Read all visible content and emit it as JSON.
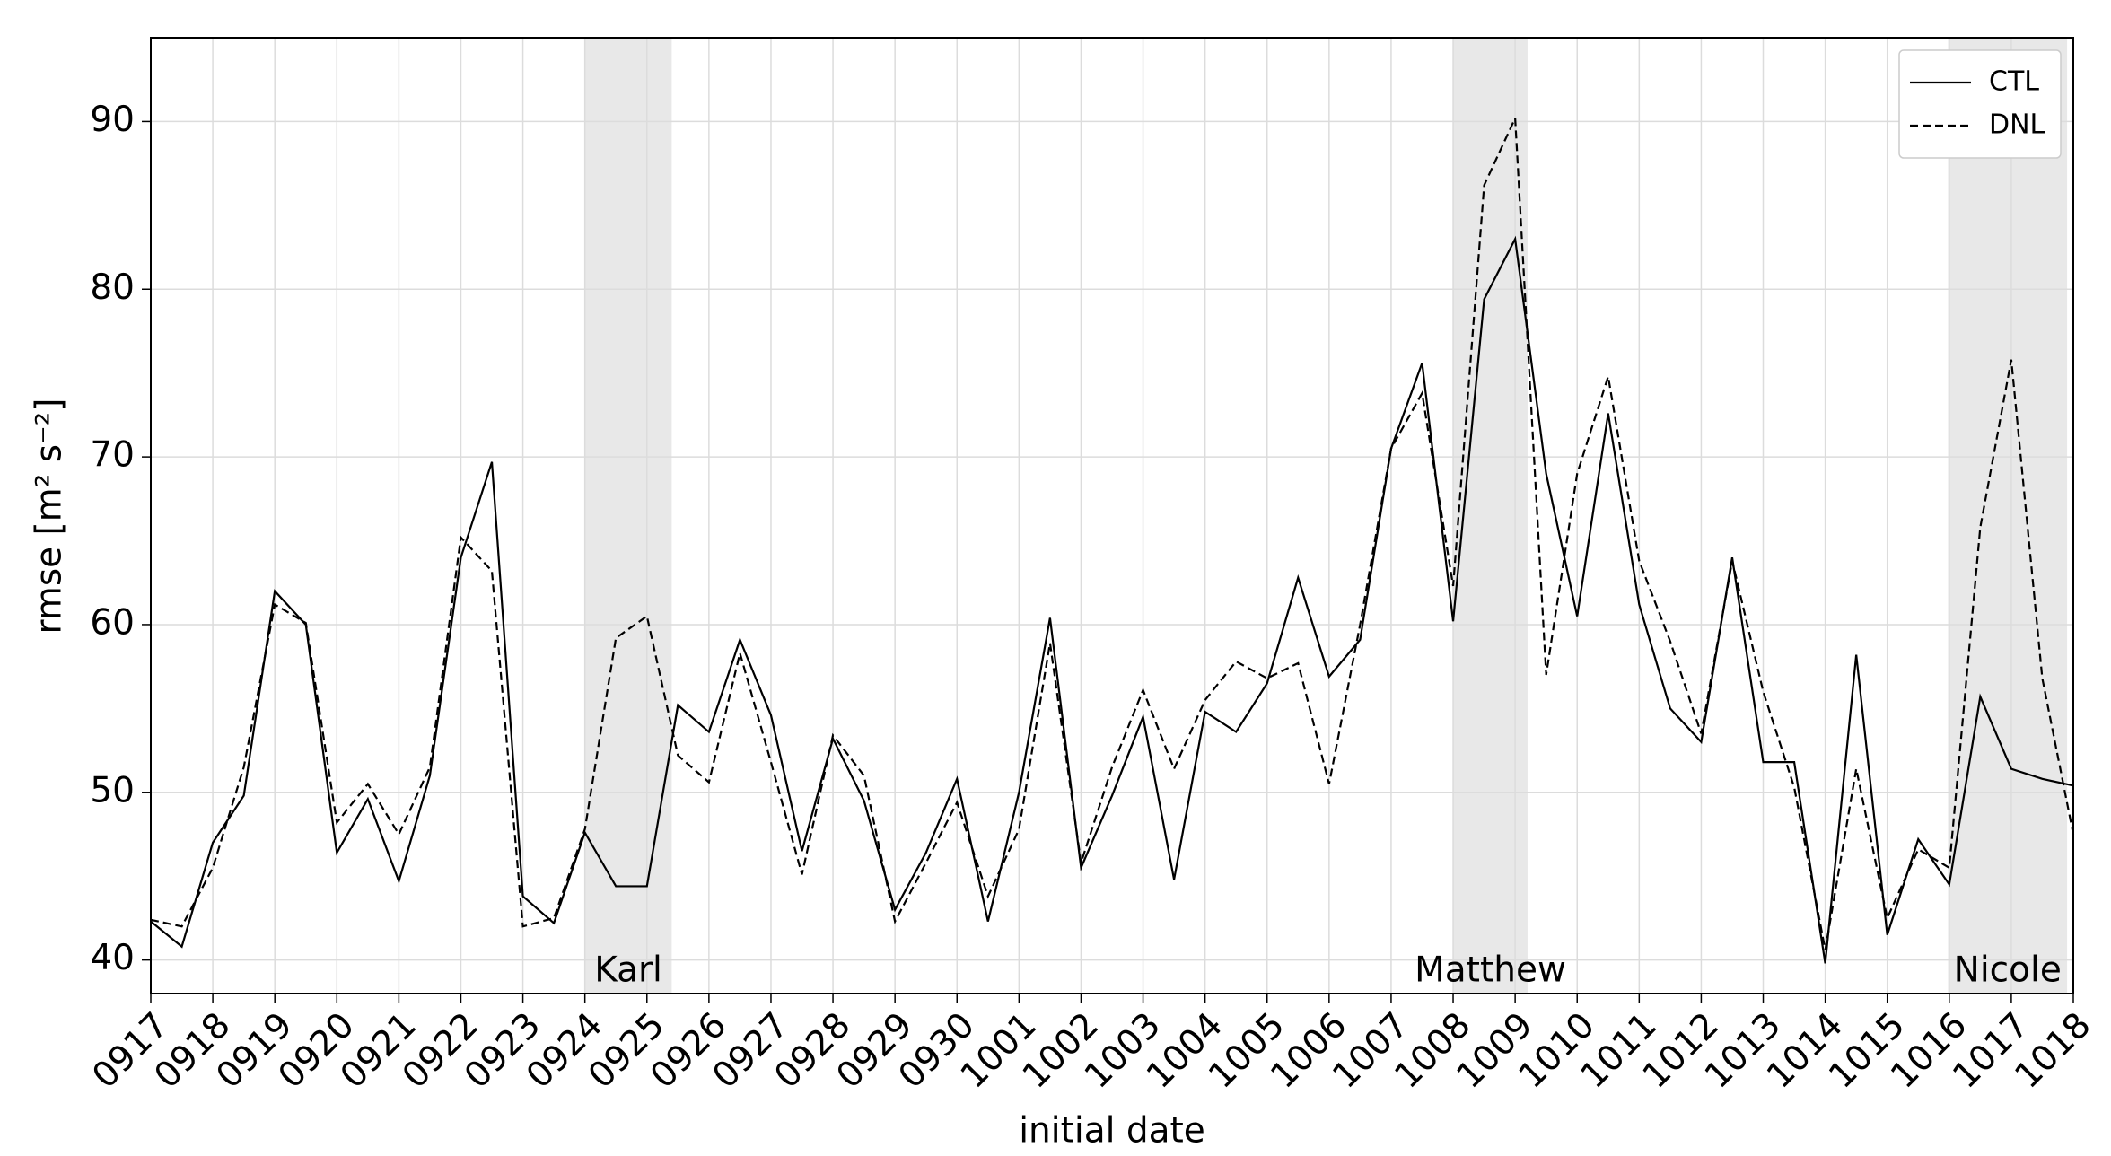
{
  "chart_data": {
    "type": "line",
    "xlabel": "initial date",
    "ylabel": "rmse [m² s⁻²]",
    "x": [
      0,
      0.5,
      1,
      1.5,
      2,
      2.5,
      3,
      3.5,
      4,
      4.5,
      5,
      5.5,
      6,
      6.5,
      7,
      7.5,
      8,
      8.5,
      9,
      9.5,
      10,
      10.5,
      11,
      11.5,
      12,
      12.5,
      13,
      13.5,
      14,
      14.5,
      15,
      15.5,
      16,
      16.5,
      17,
      17.5,
      18,
      18.5,
      19,
      19.5,
      20,
      20.5,
      21,
      21.5,
      22,
      22.5,
      23,
      23.5,
      24,
      24.5,
      25,
      25.5,
      26,
      26.5,
      27,
      27.5,
      28,
      28.5,
      29,
      29.5,
      30,
      30.5,
      31
    ],
    "series": [
      {
        "name": "CTL",
        "color": "#000000",
        "linestyle": "solid",
        "values": [
          42.3,
          40.8,
          47,
          49.8,
          62,
          60,
          46.4,
          49.6,
          44.7,
          51,
          64,
          69.7,
          43.8,
          42.2,
          47.6,
          44.4,
          44.4,
          55.2,
          53.6,
          59.1,
          54.6,
          46.5,
          53.2,
          49.5,
          43,
          46.4,
          50.8,
          42.3,
          50,
          60.4,
          45.5,
          49.8,
          54.5,
          44.8,
          54.8,
          53.6,
          56.5,
          62.8,
          56.9,
          59.1,
          70.5,
          75.6,
          60.2,
          79.4,
          83,
          69,
          60.5,
          72.6,
          61.2,
          55,
          53,
          64,
          51.8,
          51.8,
          39.8,
          58.2,
          41.5,
          47.2,
          44.5,
          55.7,
          51.4,
          50.8,
          50.4
        ]
      },
      {
        "name": "DNL",
        "color": "#000000",
        "linestyle": "dashed",
        "values": [
          42.4,
          42,
          45.5,
          51.5,
          61.2,
          60.1,
          48.2,
          50.5,
          47.5,
          51.5,
          65.2,
          63.2,
          42,
          42.5,
          47.8,
          59.2,
          60.5,
          52.2,
          50.6,
          58.3,
          51.8,
          45.1,
          53.4,
          51,
          42.3,
          45.8,
          49.4,
          43.8,
          47.8,
          58.9,
          45.8,
          51.5,
          56.1,
          51.4,
          55.5,
          57.8,
          56.8,
          57.7,
          50.5,
          60,
          70.5,
          73.8,
          62.3,
          86.2,
          90.2,
          57,
          69,
          74.8,
          63.8,
          59,
          53.5,
          63.8,
          56,
          50.3,
          40.6,
          51.4,
          42.5,
          46.6,
          45.5,
          65.8,
          75.8,
          56.8,
          47.5
        ]
      }
    ],
    "spans": [
      {
        "label": "Karl",
        "x": [
          7,
          8.4
        ],
        "color": "#e8e8e8"
      },
      {
        "label": "Matthew",
        "x": [
          21,
          22.2
        ],
        "color": "#e8e8e8"
      },
      {
        "label": "Nicole",
        "x": [
          28.98,
          30.9
        ],
        "color": "#e8e8e8"
      }
    ],
    "xlim": [
      0,
      31
    ],
    "xticks": [
      {
        "value": 0,
        "label": "0917"
      },
      {
        "value": 1,
        "label": "0918"
      },
      {
        "value": 2,
        "label": "0919"
      },
      {
        "value": 3,
        "label": "0920"
      },
      {
        "value": 4,
        "label": "0921"
      },
      {
        "value": 5,
        "label": "0922"
      },
      {
        "value": 6,
        "label": "0923"
      },
      {
        "value": 7,
        "label": "0924"
      },
      {
        "value": 8,
        "label": "0925"
      },
      {
        "value": 9,
        "label": "0926"
      },
      {
        "value": 10,
        "label": "0927"
      },
      {
        "value": 11,
        "label": "0928"
      },
      {
        "value": 12,
        "label": "0929"
      },
      {
        "value": 13,
        "label": "0930"
      },
      {
        "value": 14,
        "label": "1001"
      },
      {
        "value": 15,
        "label": "1002"
      },
      {
        "value": 16,
        "label": "1003"
      },
      {
        "value": 17,
        "label": "1004"
      },
      {
        "value": 18,
        "label": "1005"
      },
      {
        "value": 19,
        "label": "1006"
      },
      {
        "value": 20,
        "label": "1007"
      },
      {
        "value": 21,
        "label": "1008"
      },
      {
        "value": 22,
        "label": "1009"
      },
      {
        "value": 23,
        "label": "1010"
      },
      {
        "value": 24,
        "label": "1011"
      },
      {
        "value": 25,
        "label": "1012"
      },
      {
        "value": 26,
        "label": "1013"
      },
      {
        "value": 27,
        "label": "1014"
      },
      {
        "value": 28,
        "label": "1015"
      },
      {
        "value": 29,
        "label": "1016"
      },
      {
        "value": 30,
        "label": "1017"
      },
      {
        "value": 31,
        "label": "1018"
      }
    ],
    "ylim": [
      38,
      95
    ],
    "yticks": [
      40,
      50,
      60,
      70,
      80,
      90
    ],
    "grid": true,
    "legend": "upper right"
  }
}
